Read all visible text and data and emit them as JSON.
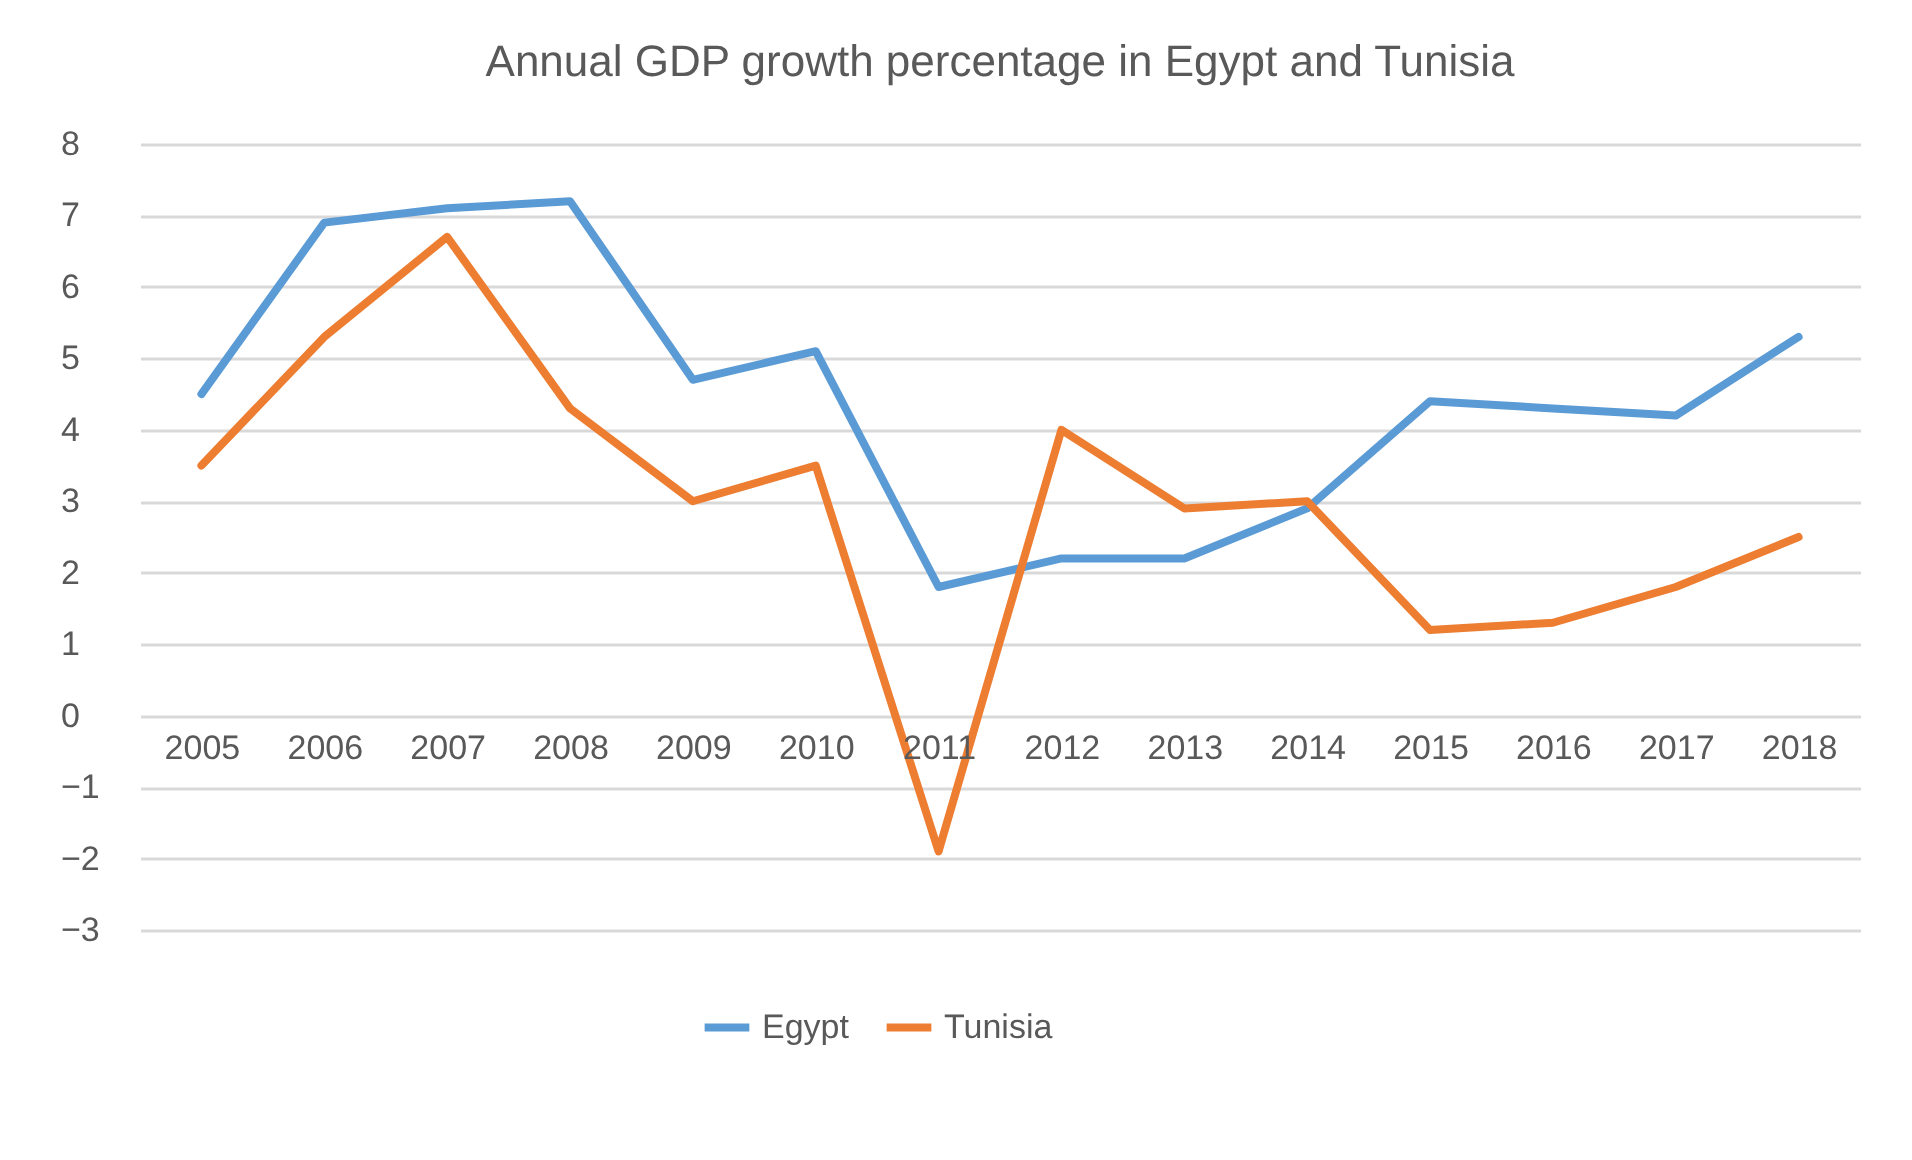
{
  "chart_data": {
    "type": "line",
    "title": "Annual GDP growth percentage in Egypt and Tunisia",
    "categories": [
      "2005",
      "2006",
      "2007",
      "2008",
      "2009",
      "2010",
      "2011",
      "2012",
      "2013",
      "2014",
      "2015",
      "2016",
      "2017",
      "2018"
    ],
    "series": [
      {
        "name": "Egypt",
        "color": "#5b9bd5",
        "values": [
          4.5,
          6.9,
          7.1,
          7.2,
          4.7,
          5.1,
          1.8,
          2.2,
          2.2,
          2.9,
          4.4,
          4.3,
          4.2,
          5.3
        ]
      },
      {
        "name": "Tunisia",
        "color": "#ed7d31",
        "values": [
          3.5,
          5.3,
          6.7,
          4.3,
          3.0,
          3.5,
          -1.9,
          4.0,
          2.9,
          3.0,
          1.2,
          1.3,
          1.8,
          2.5
        ]
      }
    ],
    "ylim": [
      -3,
      8
    ],
    "yticks": [
      -3,
      -2,
      -1,
      0,
      1,
      2,
      3,
      4,
      5,
      6,
      7,
      8
    ],
    "grid": "y",
    "legend": "bottom",
    "marker": "none",
    "line_style": "solid"
  }
}
